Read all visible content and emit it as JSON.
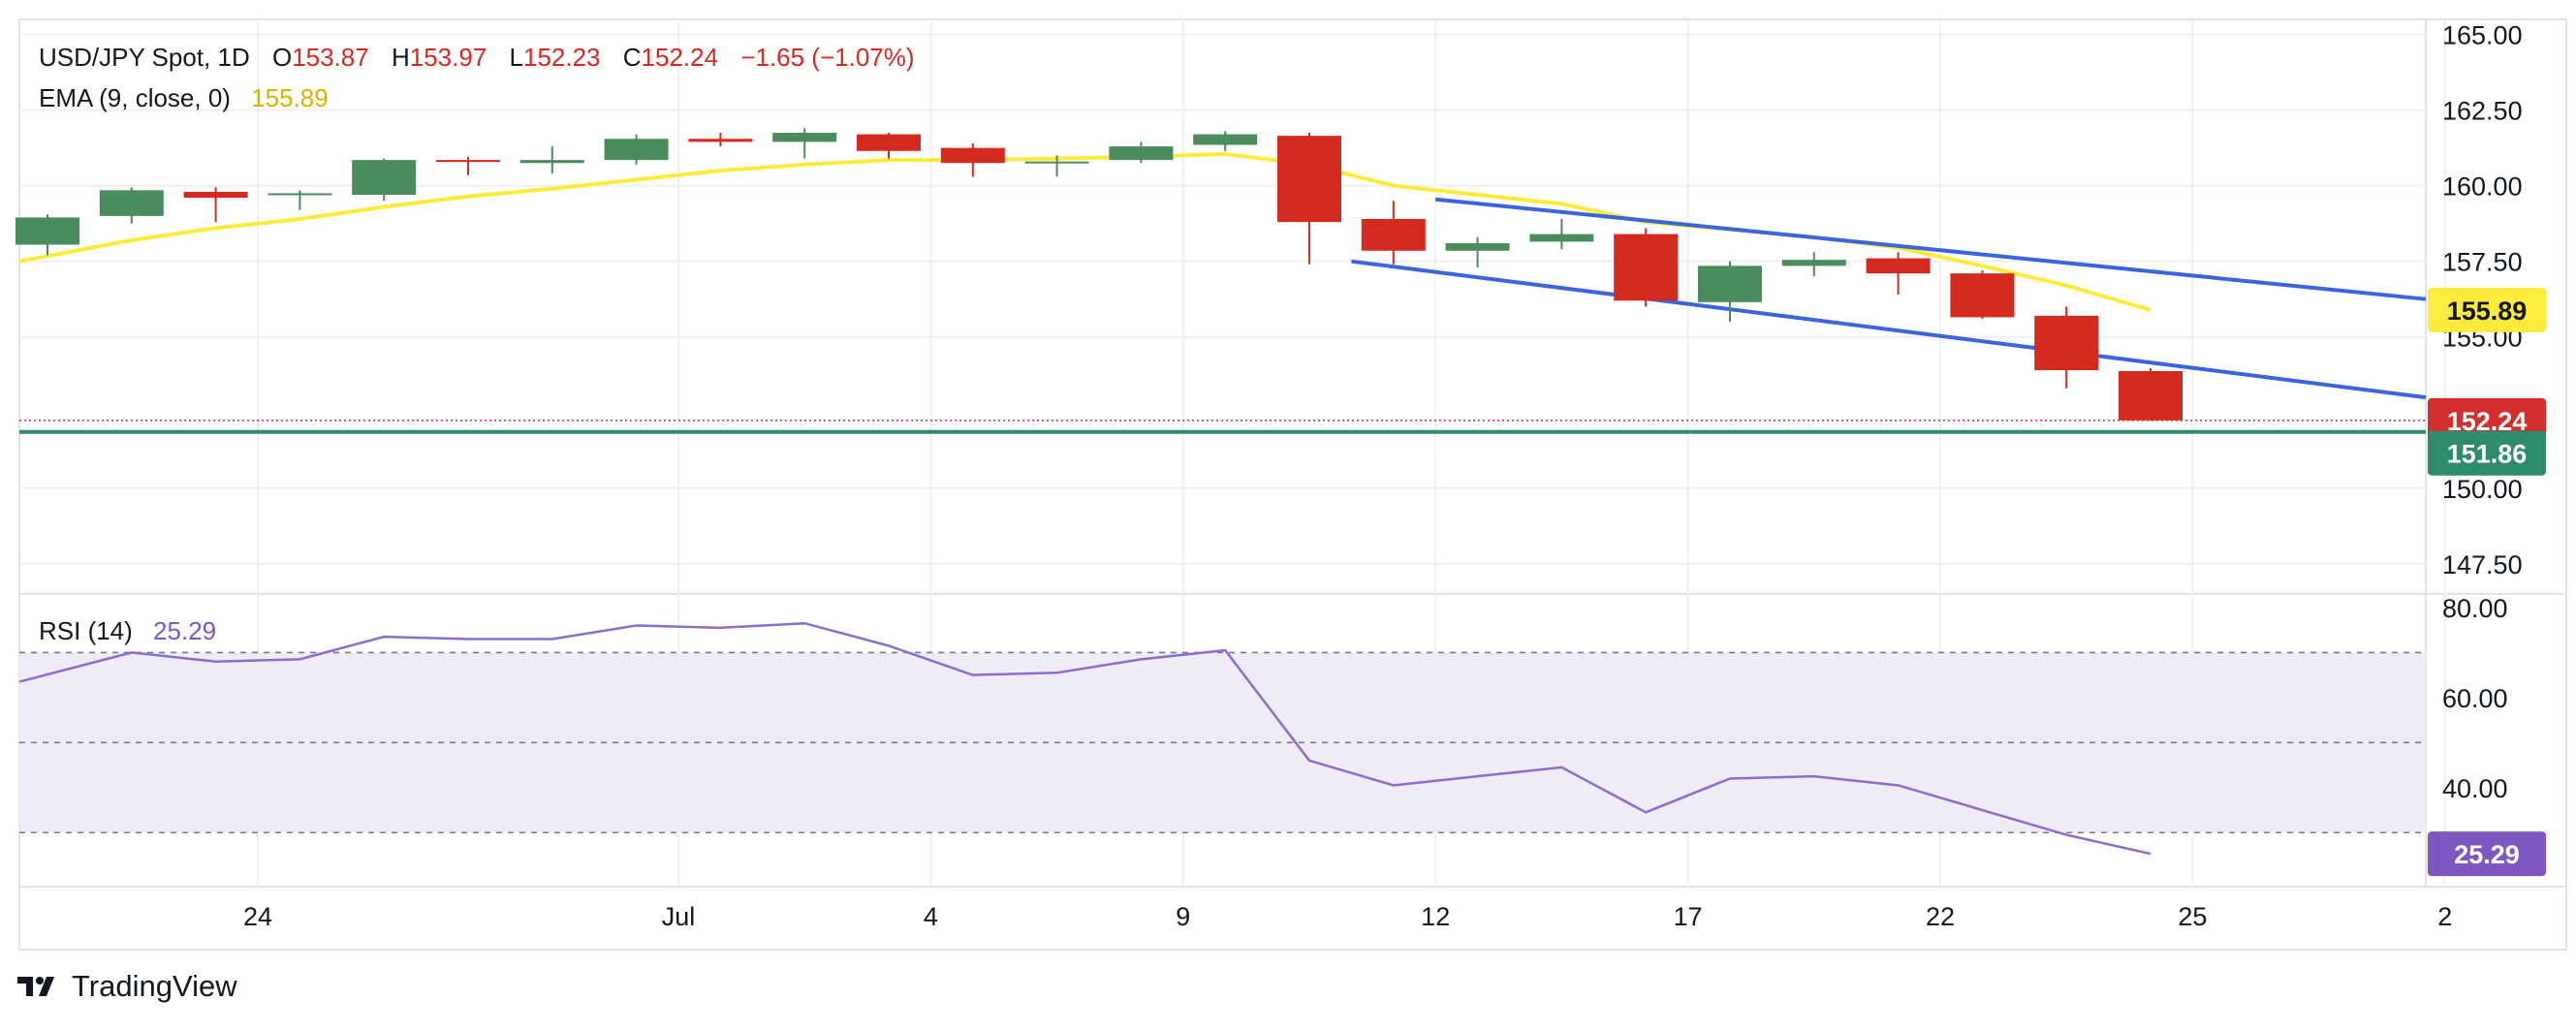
{
  "chart_data": [
    {
      "type": "candlestick",
      "pane": "price",
      "x_ticks": [
        {
          "label": "24",
          "pos": 2.5
        },
        {
          "label": "Jul",
          "pos": 7.5
        },
        {
          "label": "4",
          "pos": 10.5
        },
        {
          "label": "9",
          "pos": 13.5
        },
        {
          "label": "12",
          "pos": 16.5
        },
        {
          "label": "17",
          "pos": 19.5
        },
        {
          "label": "22",
          "pos": 22.5
        },
        {
          "label": "25",
          "pos": 25.5
        },
        {
          "label": "2",
          "pos": 28.5
        }
      ],
      "y_ticks": [
        "165.00",
        "162.50",
        "160.00",
        "157.50",
        "155.00",
        "150.00",
        "147.50"
      ],
      "ylim": [
        146.5,
        165.5
      ],
      "candles": [
        {
          "i": 0,
          "o": 158.05,
          "h": 159.05,
          "l": 157.7,
          "c": 158.95
        },
        {
          "i": 1,
          "o": 159.0,
          "h": 159.95,
          "l": 158.75,
          "c": 159.85
        },
        {
          "i": 2,
          "o": 159.8,
          "h": 159.95,
          "l": 158.8,
          "c": 159.6
        },
        {
          "i": 3,
          "o": 159.7,
          "h": 159.85,
          "l": 159.2,
          "c": 159.75
        },
        {
          "i": 4,
          "o": 159.7,
          "h": 160.9,
          "l": 159.5,
          "c": 160.85
        },
        {
          "i": 5,
          "o": 160.85,
          "h": 160.95,
          "l": 160.35,
          "c": 160.8
        },
        {
          "i": 6,
          "o": 160.75,
          "h": 161.3,
          "l": 160.4,
          "c": 160.85
        },
        {
          "i": 7,
          "o": 160.85,
          "h": 161.7,
          "l": 160.7,
          "c": 161.55
        },
        {
          "i": 8,
          "o": 161.55,
          "h": 161.75,
          "l": 161.3,
          "c": 161.45
        },
        {
          "i": 9,
          "o": 161.45,
          "h": 161.9,
          "l": 160.9,
          "c": 161.75
        },
        {
          "i": 10,
          "o": 161.7,
          "h": 161.75,
          "l": 160.9,
          "c": 161.15
        },
        {
          "i": 11,
          "o": 161.25,
          "h": 161.4,
          "l": 160.3,
          "c": 160.75
        },
        {
          "i": 12,
          "o": 160.75,
          "h": 161.0,
          "l": 160.3,
          "c": 160.8
        },
        {
          "i": 13,
          "o": 160.85,
          "h": 161.45,
          "l": 160.75,
          "c": 161.3
        },
        {
          "i": 14,
          "o": 161.35,
          "h": 161.8,
          "l": 161.15,
          "c": 161.7
        },
        {
          "i": 15,
          "o": 161.65,
          "h": 161.75,
          "l": 157.4,
          "c": 158.8
        },
        {
          "i": 16,
          "o": 158.9,
          "h": 159.5,
          "l": 157.4,
          "c": 157.85
        },
        {
          "i": 17,
          "o": 157.85,
          "h": 158.3,
          "l": 157.3,
          "c": 158.1
        },
        {
          "i": 18,
          "o": 158.15,
          "h": 158.9,
          "l": 157.9,
          "c": 158.4
        },
        {
          "i": 19,
          "o": 158.4,
          "h": 158.6,
          "l": 156.0,
          "c": 156.2
        },
        {
          "i": 20,
          "o": 156.15,
          "h": 157.5,
          "l": 155.5,
          "c": 157.35
        },
        {
          "i": 21,
          "o": 157.35,
          "h": 157.8,
          "l": 157.0,
          "c": 157.55
        },
        {
          "i": 22,
          "o": 157.6,
          "h": 157.8,
          "l": 156.4,
          "c": 157.1
        },
        {
          "i": 23,
          "o": 157.1,
          "h": 157.2,
          "l": 155.6,
          "c": 155.65
        },
        {
          "i": 24,
          "o": 155.7,
          "h": 156.0,
          "l": 153.3,
          "c": 153.9
        },
        {
          "i": 25,
          "o": 153.87,
          "h": 153.97,
          "l": 152.23,
          "c": 152.24
        }
      ],
      "ema": [
        157.5,
        158.2,
        158.6,
        158.9,
        159.3,
        159.65,
        159.9,
        160.2,
        160.5,
        160.7,
        160.85,
        160.85,
        160.9,
        160.95,
        161.05,
        160.7,
        160.0,
        159.7,
        159.4,
        158.8,
        158.55,
        158.3,
        157.95,
        157.35,
        156.7,
        155.89
      ],
      "channel_upper": {
        "x1": 16.5,
        "y1": 159.55,
        "x2": 29.5,
        "y2": 156.25
      },
      "channel_lower": {
        "x1": 15.5,
        "y1": 157.5,
        "x2": 29.5,
        "y2": 153.0
      },
      "support_level": 151.86,
      "last_price_level": 152.24,
      "price_tags": {
        "ema": {
          "value": 155.89,
          "label": "155.89",
          "color": "#FFEB3B",
          "text_color": "#131722"
        },
        "last": {
          "value": 152.24,
          "label": "152.24",
          "color": "#D32F2F",
          "text_color": "#ffffff"
        },
        "support": {
          "value": 151.86,
          "label": "151.86",
          "color": "#2E8B6E",
          "text_color": "#ffffff"
        }
      }
    },
    {
      "type": "line",
      "pane": "rsi",
      "y_ticks": [
        "80.00",
        "60.00",
        "40.00"
      ],
      "ylim": [
        18,
        83
      ],
      "levels": [
        70,
        50,
        30
      ],
      "values": [
        63.5,
        70.0,
        68.0,
        68.5,
        73.5,
        73.0,
        73.0,
        76.0,
        75.5,
        76.5,
        71.5,
        65.0,
        65.5,
        68.5,
        70.5,
        46.0,
        40.5,
        42.5,
        44.5,
        34.5,
        42.0,
        42.5,
        40.5,
        35.0,
        29.5,
        25.29
      ],
      "last_tag": {
        "value": 25.29,
        "label": "25.29",
        "color": "#7E57C2",
        "text_color": "#ffffff"
      }
    }
  ],
  "legend": {
    "symbol": "USD/JPY Spot, 1D",
    "o_label": "O",
    "o_value": "153.87",
    "h_label": "H",
    "h_value": "153.97",
    "l_label": "L",
    "l_value": "152.23",
    "c_label": "C",
    "c_value": "152.24",
    "change": "−1.65 (−1.07%)",
    "ema_label": "EMA (9, close, 0)",
    "ema_value": "155.89",
    "rsi_label": "RSI (14)",
    "rsi_value": "25.29"
  },
  "colors": {
    "up": "#4B8C5E",
    "down": "#D42A20",
    "ema": "#FFEB3B",
    "channel": "#3B65E0",
    "support": "#2E8B6E",
    "rsi": "#8E6CC9",
    "rsi_band": "#EFECF8",
    "grid": "#EEF0F4",
    "text": "#131722"
  },
  "branding": {
    "name": "TradingView"
  }
}
